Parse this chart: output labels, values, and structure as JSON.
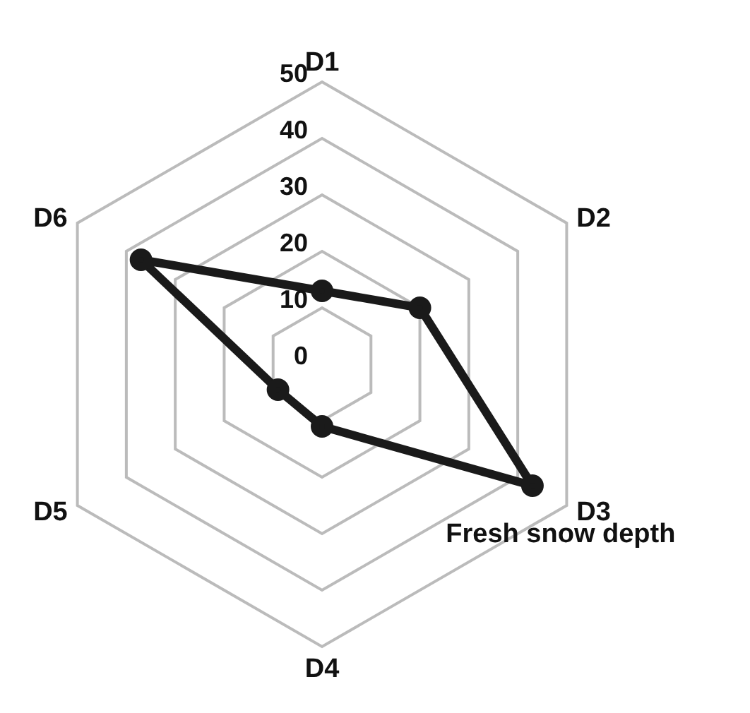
{
  "chart_data": {
    "type": "radar",
    "categories": [
      "D1",
      "D2",
      "D3",
      "D4",
      "D5",
      "D6"
    ],
    "series": [
      {
        "name": "Fresh snow depth",
        "color": "#1a1a1a",
        "values": [
          13,
          20,
          43,
          11,
          9,
          37
        ]
      }
    ],
    "ylim": [
      0,
      50
    ],
    "yticks": [
      0,
      10,
      20,
      30,
      40,
      50
    ],
    "marker": "circle",
    "grid": true
  }
}
